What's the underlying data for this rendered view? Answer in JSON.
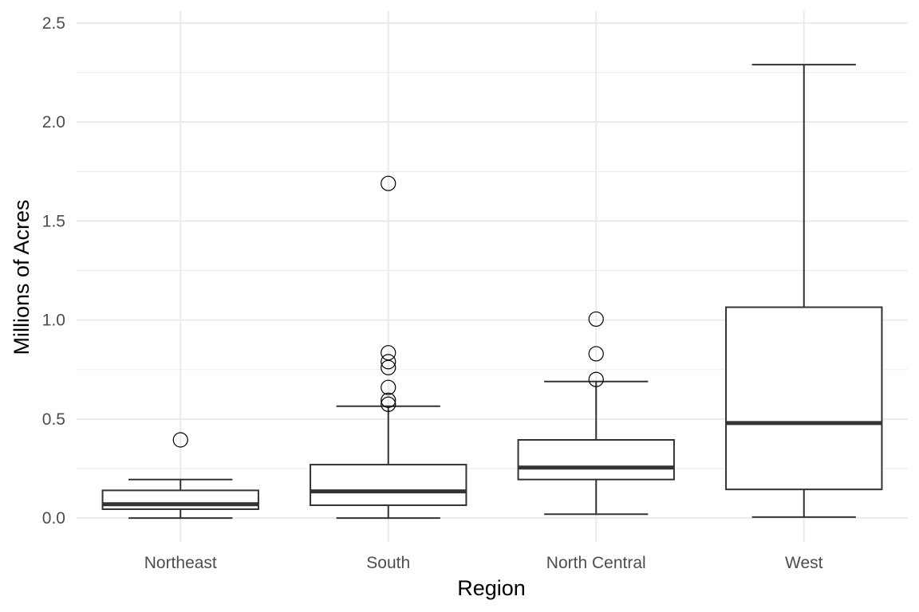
{
  "chart_data": {
    "type": "boxplot",
    "xlabel": "Region",
    "ylabel": "Millions of Acres",
    "ylim": [
      -0.12,
      2.56
    ],
    "y_ticks": [
      0.0,
      0.5,
      1.0,
      1.5,
      2.0,
      2.5
    ],
    "y_tick_labels": [
      "0.0",
      "0.5",
      "1.0",
      "1.5",
      "2.0",
      "2.5"
    ],
    "grid": true,
    "legend": "none",
    "categories": [
      "Northeast",
      "South",
      "North Central",
      "West"
    ],
    "boxes": [
      {
        "category": "Northeast",
        "whisker_low": 0.0,
        "q1": 0.045,
        "median": 0.07,
        "q3": 0.14,
        "whisker_high": 0.195,
        "outliers": [
          0.395
        ]
      },
      {
        "category": "South",
        "whisker_low": 0.0,
        "q1": 0.065,
        "median": 0.135,
        "q3": 0.27,
        "whisker_high": 0.565,
        "outliers": [
          1.69,
          0.835,
          0.79,
          0.76,
          0.66,
          0.595,
          0.575
        ]
      },
      {
        "category": "North Central",
        "whisker_low": 0.02,
        "q1": 0.195,
        "median": 0.255,
        "q3": 0.395,
        "whisker_high": 0.69,
        "outliers": [
          1.005,
          0.83,
          0.7
        ]
      },
      {
        "category": "West",
        "whisker_low": 0.005,
        "q1": 0.145,
        "median": 0.48,
        "q3": 1.065,
        "whisker_high": 2.29,
        "outliers": []
      }
    ]
  }
}
